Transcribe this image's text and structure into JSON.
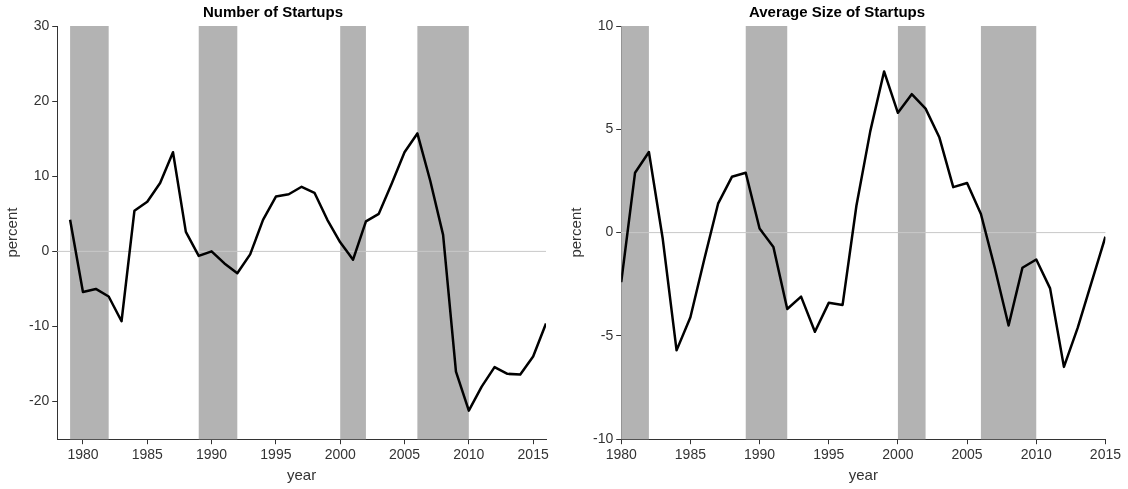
{
  "chart_data": [
    {
      "type": "line",
      "title": "Number of Startups",
      "xlabel": "year",
      "ylabel": "percent",
      "x": [
        1979,
        1980,
        1981,
        1982,
        1983,
        1984,
        1985,
        1986,
        1987,
        1988,
        1989,
        1990,
        1991,
        1992,
        1993,
        1994,
        1995,
        1996,
        1997,
        1998,
        1999,
        2000,
        2001,
        2002,
        2003,
        2004,
        2005,
        2006,
        2007,
        2008,
        2009,
        2010,
        2011,
        2012,
        2013,
        2014,
        2015,
        2016
      ],
      "series": [
        {
          "color": "#000000",
          "values": [
            4.2,
            -5.4,
            -5,
            -6,
            -9.3,
            5.4,
            6.6,
            9.1,
            13.2,
            2.6,
            -0.6,
            0,
            -1.6,
            -2.9,
            -0.4,
            4.2,
            7.3,
            7.6,
            8.6,
            7.8,
            4.2,
            1.2,
            -1.1,
            4,
            5,
            9,
            13.2,
            15.7,
            9.4,
            2.2,
            -16,
            -21.2,
            -18,
            -15.4,
            -16.3,
            -16.4,
            -14,
            -9.6
          ]
        }
      ],
      "xlim": [
        1978,
        2016
      ],
      "xticks": [
        1980,
        1985,
        1990,
        1995,
        2000,
        2005,
        2010,
        2015
      ],
      "ylim": [
        -25,
        30
      ],
      "yticks": [
        -20,
        -10,
        0,
        10,
        20,
        30
      ],
      "grid": false,
      "legend": false,
      "marker": "none",
      "line_style": "solid",
      "ref_lines": [
        {
          "axis": "y",
          "value": 0,
          "color": "#c8c8c8"
        }
      ],
      "bands": [
        {
          "axis": "x",
          "from": 1979,
          "to": 1982,
          "color": "#b3b3b3"
        },
        {
          "axis": "x",
          "from": 1989,
          "to": 1992,
          "color": "#b3b3b3"
        },
        {
          "axis": "x",
          "from": 2000,
          "to": 2002,
          "color": "#b3b3b3"
        },
        {
          "axis": "x",
          "from": 2006,
          "to": 2010,
          "color": "#b3b3b3"
        }
      ]
    },
    {
      "type": "line",
      "title": "Average Size of Startups",
      "xlabel": "year",
      "ylabel": "percent",
      "x": [
        1980,
        1981,
        1982,
        1983,
        1984,
        1985,
        1986,
        1987,
        1988,
        1989,
        1990,
        1991,
        1992,
        1993,
        1994,
        1995,
        1996,
        1997,
        1998,
        1999,
        2000,
        2001,
        2002,
        2003,
        2004,
        2005,
        2006,
        2007,
        2008,
        2009,
        2010,
        2011,
        2012,
        2013,
        2014,
        2015
      ],
      "series": [
        {
          "color": "#000000",
          "values": [
            -2.4,
            2.9,
            3.9,
            -0.3,
            -5.7,
            -4.1,
            -1.3,
            1.4,
            2.7,
            2.9,
            0.2,
            -0.7,
            -3.7,
            -3.1,
            -4.8,
            -3.4,
            -3.5,
            1.3,
            4.9,
            7.8,
            5.8,
            6.7,
            6,
            4.6,
            2.2,
            2.4,
            0.9,
            -1.7,
            -4.5,
            -1.7,
            -1.3,
            -2.7,
            -6.5,
            -4.6,
            -2.4,
            -0.2
          ]
        }
      ],
      "xlim": [
        1980,
        2015
      ],
      "xticks": [
        1980,
        1985,
        1990,
        1995,
        2000,
        2005,
        2010,
        2015
      ],
      "ylim": [
        -10,
        10
      ],
      "yticks": [
        -10,
        -5,
        0,
        5,
        10
      ],
      "grid": false,
      "legend": false,
      "marker": "none",
      "line_style": "solid",
      "ref_lines": [
        {
          "axis": "y",
          "value": 0,
          "color": "#c8c8c8"
        }
      ],
      "bands": [
        {
          "axis": "x",
          "from": 1980,
          "to": 1982,
          "color": "#b3b3b3"
        },
        {
          "axis": "x",
          "from": 1989,
          "to": 1992,
          "color": "#b3b3b3"
        },
        {
          "axis": "x",
          "from": 2000,
          "to": 2002,
          "color": "#b3b3b3"
        },
        {
          "axis": "x",
          "from": 2006,
          "to": 2010,
          "color": "#b3b3b3"
        }
      ]
    }
  ]
}
